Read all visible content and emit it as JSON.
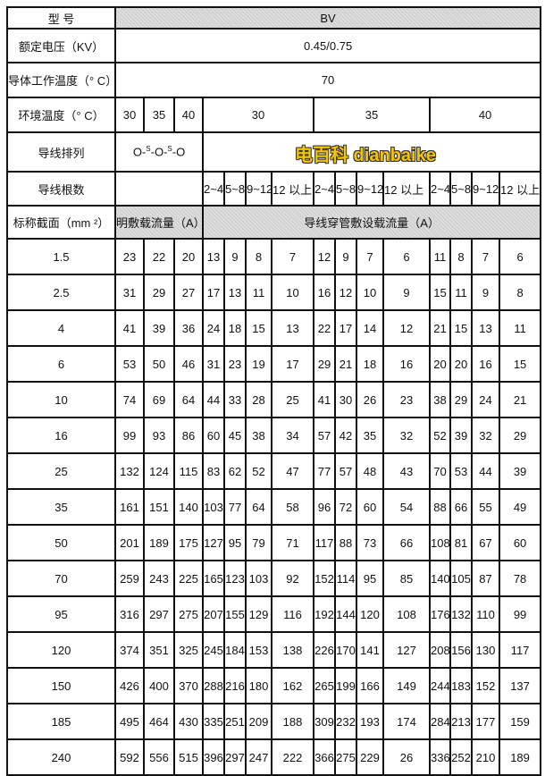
{
  "header": {
    "model_label": "型 号",
    "model_value": "BV",
    "voltage_label": "额定电压（KV）",
    "voltage_value": "0.45/0.75",
    "conductor_temp_label": "导体工作温度（° C）",
    "conductor_temp_value": "70",
    "ambient_label": "环境温度（° C）",
    "ambient_open": [
      "30",
      "35",
      "40"
    ],
    "ambient_conduit": [
      "30",
      "35",
      "40"
    ],
    "arrangement_label": "导线排列",
    "arrangement_parts": [
      "O-",
      "S",
      "-O-",
      "S",
      "-O"
    ],
    "count_label": "导线根数",
    "counts": [
      "2~4",
      "5~8",
      "9~12",
      "12 以上",
      "2~4",
      "5~8",
      "9~12",
      "12  以上",
      "2~4",
      "5~8",
      "9~12",
      "12 以上"
    ],
    "section_label": "标称截面（mm ²）",
    "open_current_label": "明敷载流量（A）",
    "conduit_current_label": "导线穿管敷设载流量（A）"
  },
  "watermark": "电百科 dianbaike",
  "rows": [
    [
      "1.5",
      "23",
      "22",
      "20",
      "13",
      "9",
      "8",
      "7",
      "12",
      "9",
      "7",
      "6",
      "11",
      "8",
      "7",
      "6"
    ],
    [
      "2.5",
      "31",
      "29",
      "27",
      "17",
      "13",
      "11",
      "10",
      "16",
      "12",
      "10",
      "9",
      "15",
      "11",
      "9",
      "8"
    ],
    [
      "4",
      "41",
      "39",
      "36",
      "24",
      "18",
      "15",
      "13",
      "22",
      "17",
      "14",
      "12",
      "21",
      "15",
      "13",
      "11"
    ],
    [
      "6",
      "53",
      "50",
      "46",
      "31",
      "23",
      "19",
      "17",
      "29",
      "21",
      "18",
      "16",
      "20",
      "20",
      "16",
      "15"
    ],
    [
      "10",
      "74",
      "69",
      "64",
      "44",
      "33",
      "28",
      "25",
      "41",
      "30",
      "26",
      "23",
      "38",
      "29",
      "24",
      "21"
    ],
    [
      "16",
      "99",
      "93",
      "86",
      "60",
      "45",
      "38",
      "34",
      "57",
      "42",
      "35",
      "32",
      "52",
      "39",
      "32",
      "29"
    ],
    [
      "25",
      "132",
      "124",
      "115",
      "83",
      "62",
      "52",
      "47",
      "77",
      "57",
      "48",
      "43",
      "70",
      "53",
      "44",
      "39"
    ],
    [
      "35",
      "161",
      "151",
      "140",
      "103",
      "77",
      "64",
      "58",
      "96",
      "72",
      "60",
      "54",
      "88",
      "66",
      "55",
      "49"
    ],
    [
      "50",
      "201",
      "189",
      "175",
      "127",
      "95",
      "79",
      "71",
      "117",
      "88",
      "73",
      "66",
      "108",
      "81",
      "67",
      "60"
    ],
    [
      "70",
      "259",
      "243",
      "225",
      "165",
      "123",
      "103",
      "92",
      "152",
      "114",
      "95",
      "85",
      "140",
      "105",
      "87",
      "78"
    ],
    [
      "95",
      "316",
      "297",
      "275",
      "207",
      "155",
      "129",
      "116",
      "192",
      "144",
      "120",
      "108",
      "176",
      "132",
      "110",
      "99"
    ],
    [
      "120",
      "374",
      "351",
      "325",
      "245",
      "184",
      "153",
      "138",
      "226",
      "170",
      "141",
      "127",
      "208",
      "156",
      "130",
      "117"
    ],
    [
      "150",
      "426",
      "400",
      "370",
      "288",
      "216",
      "180",
      "162",
      "265",
      "199",
      "166",
      "149",
      "244",
      "183",
      "152",
      "137"
    ],
    [
      "185",
      "495",
      "464",
      "430",
      "335",
      "251",
      "209",
      "188",
      "309",
      "232",
      "193",
      "174",
      "284",
      "213",
      "177",
      "159"
    ],
    [
      "240",
      "592",
      "556",
      "515",
      "396",
      "297",
      "247",
      "222",
      "366",
      "275",
      "229",
      "26",
      "336",
      "252",
      "210",
      "189"
    ]
  ]
}
